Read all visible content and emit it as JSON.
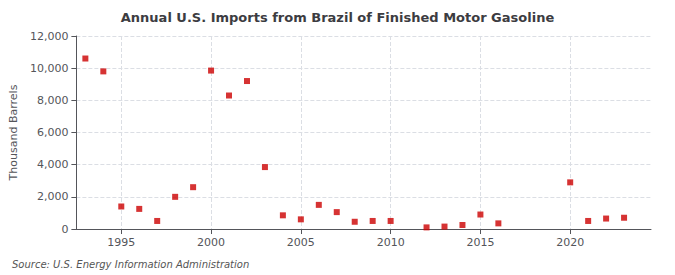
{
  "chart_data": {
    "type": "scatter",
    "title": "Annual U.S. Imports from Brazil of Finished Motor Gasoline",
    "ylabel": "Thousand Barrels",
    "annotation": "Source: U.S. Energy Information Administration",
    "x": [
      1993,
      1994,
      1995,
      1996,
      1997,
      1998,
      1999,
      2000,
      2001,
      2002,
      2003,
      2004,
      2005,
      2006,
      2007,
      2008,
      2009,
      2010,
      2012,
      2013,
      2014,
      2015,
      2016,
      2020,
      2021,
      2022,
      2023
    ],
    "values": [
      10600,
      9800,
      1400,
      1250,
      500,
      2000,
      2600,
      9850,
      8300,
      9200,
      3850,
      850,
      600,
      1500,
      1050,
      450,
      500,
      500,
      100,
      150,
      250,
      900,
      350,
      2900,
      500,
      650,
      700
    ],
    "color": "#cc0000",
    "marker": "square",
    "xlim": [
      1992.5,
      2024.5
    ],
    "xticks": [
      1995,
      2000,
      2005,
      2010,
      2015,
      2020
    ],
    "ylim": [
      0,
      12000
    ],
    "yticks": [
      0,
      {
        "value": 2000,
        "label": "2,000"
      },
      {
        "value": 4000,
        "label": "4,000"
      },
      {
        "value": 6000,
        "label": "6,000"
      },
      {
        "value": 8000,
        "label": "8,000"
      },
      {
        "value": 10000,
        "label": "10,000"
      },
      {
        "value": 12000,
        "label": "12,000"
      }
    ],
    "grid": true
  }
}
